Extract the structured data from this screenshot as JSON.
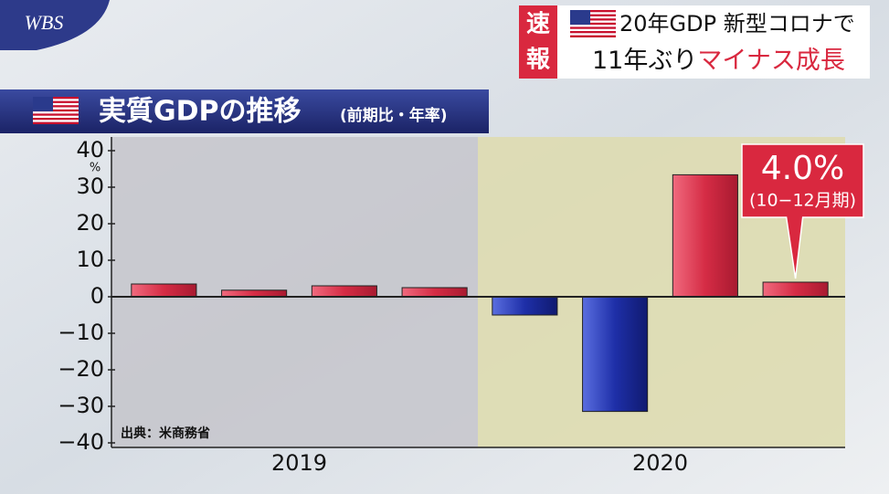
{
  "logo": "WBS",
  "flash": [
    "速",
    "報"
  ],
  "headline": {
    "line1": "20年GDP 新型コロナで",
    "line2a": "11年ぶり",
    "line2b": "マイナス成長"
  },
  "chart_data": {
    "type": "bar",
    "title": "実質GDPの推移",
    "subtitle": "(前期比・年率)",
    "source": "出典：米商務省",
    "y_unit": "%",
    "categories": [
      null,
      null,
      null,
      null,
      null,
      null,
      null,
      null
    ],
    "groups": [
      "2019",
      "2020"
    ],
    "values": [
      3.5,
      1.8,
      3.0,
      2.5,
      -5.0,
      -31.4,
      33.4,
      4.0
    ],
    "value_labels": [
      null,
      null,
      null,
      null,
      null,
      null,
      null,
      "4.0%"
    ],
    "value_label_note": "(10−12月期)",
    "positive_color": "#d52c45",
    "negative_color": "#1e2fa8",
    "ylim": [
      -40,
      40
    ],
    "yticks": [
      {
        "value": -40,
        "label": "−40"
      },
      {
        "value": -30,
        "label": "−30"
      },
      {
        "value": -20,
        "label": "−20"
      },
      {
        "value": -10,
        "label": "−10"
      },
      0,
      10,
      20,
      30,
      40
    ],
    "grid": false
  }
}
